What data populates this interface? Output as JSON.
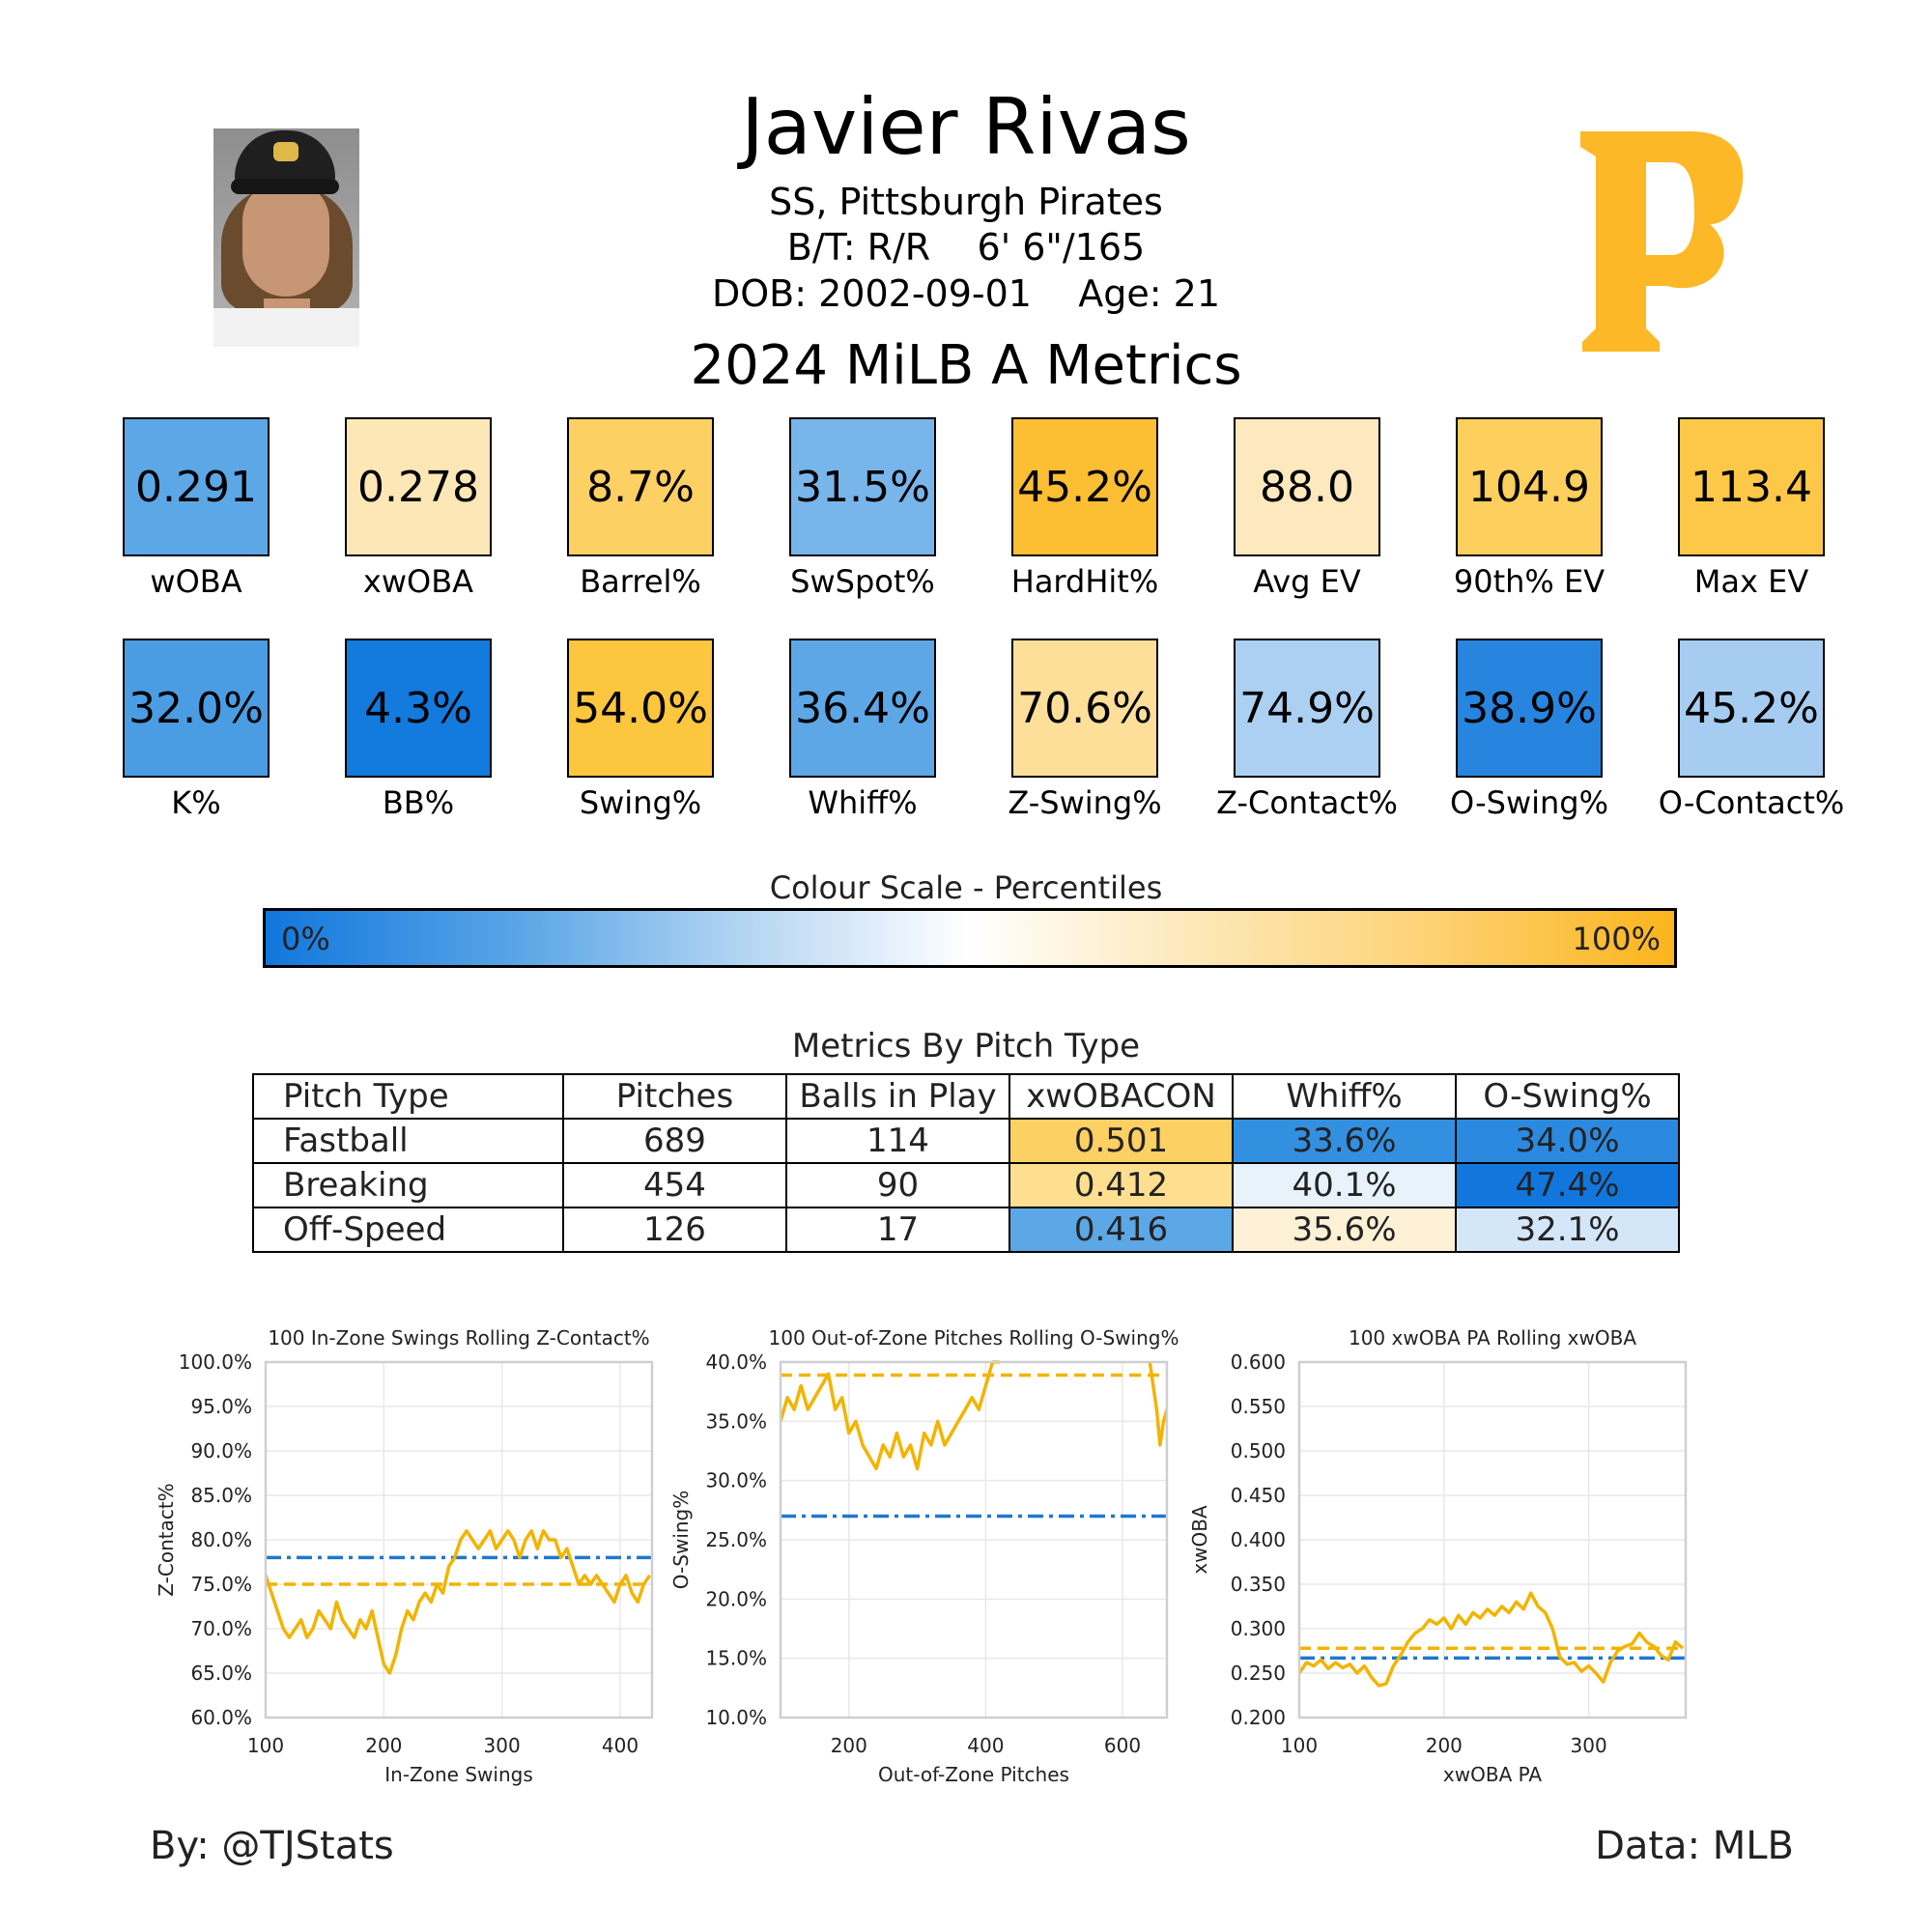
{
  "player": {
    "name": "Javier Rivas",
    "position_team": "SS, Pittsburgh Pirates",
    "bats_throws": "B/T: R/R",
    "height_weight": "6' 6\"/165",
    "dob": "DOB: 2002-09-01",
    "age": "Age: 21",
    "season_title": "2024 MiLB A Metrics"
  },
  "team_colors": {
    "primary": "#FDB827",
    "secondary": "#27251F"
  },
  "metrics_row1": [
    {
      "label": "wOBA",
      "value": "0.291",
      "color": "#5ca7e6"
    },
    {
      "label": "xwOBA",
      "value": "0.278",
      "color": "#fde7b6"
    },
    {
      "label": "Barrel%",
      "value": "8.7%",
      "color": "#fdd063"
    },
    {
      "label": "SwSpot%",
      "value": "31.5%",
      "color": "#78b5ea"
    },
    {
      "label": "HardHit%",
      "value": "45.2%",
      "color": "#fcbe33"
    },
    {
      "label": "Avg EV",
      "value": "88.0",
      "color": "#fde9bd"
    },
    {
      "label": "90th% EV",
      "value": "104.9",
      "color": "#fdcf5c"
    },
    {
      "label": "Max EV",
      "value": "113.4",
      "color": "#fdc847"
    }
  ],
  "metrics_row2": [
    {
      "label": "K%",
      "value": "32.0%",
      "color": "#4b9de3"
    },
    {
      "label": "BB%",
      "value": "4.3%",
      "color": "#127bdd"
    },
    {
      "label": "Swing%",
      "value": "54.0%",
      "color": "#fdc63f"
    },
    {
      "label": "Whiff%",
      "value": "36.4%",
      "color": "#5ea7e6"
    },
    {
      "label": "Z-Swing%",
      "value": "70.6%",
      "color": "#fddf9a"
    },
    {
      "label": "Z-Contact%",
      "value": "74.9%",
      "color": "#abd0f1"
    },
    {
      "label": "O-Swing%",
      "value": "38.9%",
      "color": "#2785df"
    },
    {
      "label": "O-Contact%",
      "value": "45.2%",
      "color": "#a6cdf1"
    }
  ],
  "color_scale": {
    "title": "Colour Scale - Percentiles",
    "min_label": "0%",
    "max_label": "100%"
  },
  "pitch_table": {
    "title": "Metrics By Pitch Type",
    "headers": [
      "Pitch Type",
      "Pitches",
      "Balls in Play",
      "xwOBACON",
      "Whiff%",
      "O-Swing%"
    ],
    "rows": [
      {
        "cells": [
          "Fastball",
          "689",
          "114",
          "0.501",
          "33.6%",
          "34.0%"
        ],
        "colors": [
          "#fdd063",
          "#3390e1",
          "#2b8ae0"
        ]
      },
      {
        "cells": [
          "Breaking",
          "454",
          "90",
          "0.412",
          "40.1%",
          "47.4%"
        ],
        "colors": [
          "#fddf8f",
          "#e8f2fb",
          "#1177dd"
        ]
      },
      {
        "cells": [
          "Off-Speed",
          "126",
          "17",
          "0.416",
          "35.6%",
          "32.1%"
        ],
        "colors": [
          "#5ca7e6",
          "#fff1d6",
          "#d4e7f8"
        ]
      }
    ]
  },
  "chart_data": [
    {
      "type": "line",
      "title": "100 In-Zone Swings Rolling Z-Contact%",
      "xlabel": "In-Zone Swings",
      "ylabel": "Z-Contact%",
      "xlim": [
        100,
        427
      ],
      "ylim": [
        0.6,
        1.0
      ],
      "xticks": [
        100,
        200,
        300,
        400
      ],
      "xtick_labels": [
        "100",
        "200",
        "300",
        "400"
      ],
      "yticks": [
        0.6,
        0.65,
        0.7,
        0.75,
        0.8,
        0.85,
        0.9,
        0.95,
        1.0
      ],
      "ytick_labels": [
        "60.0%",
        "65.0%",
        "70.0%",
        "75.0%",
        "80.0%",
        "85.0%",
        "90.0%",
        "95.0%",
        "100.0%"
      ],
      "grid": true,
      "hlines": [
        {
          "y": 0.78,
          "style": "dashdot",
          "color": "#1f77d0"
        },
        {
          "y": 0.75,
          "style": "dashed",
          "color": "#f2b400"
        }
      ],
      "series": [
        {
          "color": "#f2b400",
          "x": [
            100,
            105,
            110,
            115,
            120,
            125,
            130,
            135,
            140,
            145,
            150,
            155,
            160,
            165,
            170,
            175,
            180,
            185,
            190,
            195,
            200,
            205,
            210,
            215,
            220,
            225,
            230,
            235,
            240,
            245,
            250,
            255,
            260,
            265,
            270,
            275,
            280,
            285,
            290,
            295,
            300,
            305,
            310,
            315,
            320,
            325,
            330,
            335,
            340,
            345,
            350,
            355,
            360,
            365,
            370,
            375,
            380,
            385,
            390,
            395,
            400,
            405,
            410,
            415,
            420,
            425
          ],
          "y": [
            0.76,
            0.74,
            0.72,
            0.7,
            0.69,
            0.7,
            0.71,
            0.69,
            0.7,
            0.72,
            0.71,
            0.7,
            0.73,
            0.71,
            0.7,
            0.69,
            0.71,
            0.7,
            0.72,
            0.69,
            0.66,
            0.65,
            0.67,
            0.7,
            0.72,
            0.71,
            0.73,
            0.74,
            0.73,
            0.75,
            0.74,
            0.77,
            0.78,
            0.8,
            0.81,
            0.8,
            0.79,
            0.8,
            0.81,
            0.79,
            0.8,
            0.81,
            0.8,
            0.78,
            0.8,
            0.81,
            0.79,
            0.81,
            0.8,
            0.8,
            0.78,
            0.79,
            0.77,
            0.75,
            0.76,
            0.75,
            0.76,
            0.75,
            0.74,
            0.73,
            0.75,
            0.76,
            0.74,
            0.73,
            0.75,
            0.76
          ]
        }
      ]
    },
    {
      "type": "line",
      "title": "100 Out-of-Zone Pitches Rolling O-Swing%",
      "xlabel": "Out-of-Zone Pitches",
      "ylabel": "O-Swing%",
      "xlim": [
        100,
        665
      ],
      "ylim": [
        0.1,
        0.4
      ],
      "xticks": [
        200,
        400,
        600
      ],
      "xtick_labels": [
        "200",
        "400",
        "600"
      ],
      "yticks": [
        0.1,
        0.15,
        0.2,
        0.25,
        0.3,
        0.35,
        0.4
      ],
      "ytick_labels": [
        "10.0%",
        "15.0%",
        "20.0%",
        "25.0%",
        "30.0%",
        "35.0%",
        "40.0%"
      ],
      "grid": true,
      "hlines": [
        {
          "y": 0.27,
          "style": "dashdot",
          "color": "#1f77d0"
        },
        {
          "y": 0.389,
          "style": "dashed",
          "color": "#f2b400"
        }
      ],
      "series": [
        {
          "color": "#f2b400",
          "x": [
            100,
            110,
            120,
            130,
            140,
            150,
            160,
            170,
            180,
            190,
            200,
            210,
            220,
            230,
            240,
            250,
            260,
            270,
            280,
            290,
            300,
            310,
            320,
            330,
            340,
            350,
            360,
            370,
            380,
            390,
            400,
            410,
            420
          ],
          "y": [
            0.35,
            0.37,
            0.36,
            0.38,
            0.36,
            0.37,
            0.38,
            0.39,
            0.36,
            0.37,
            0.34,
            0.35,
            0.33,
            0.32,
            0.31,
            0.33,
            0.32,
            0.34,
            0.32,
            0.33,
            0.31,
            0.34,
            0.33,
            0.35,
            0.33,
            0.34,
            0.35,
            0.36,
            0.37,
            0.36,
            0.38,
            0.4,
            0.4
          ]
        },
        {
          "color": "#f2b400",
          "x": [
            640,
            645,
            650,
            655,
            660,
            665
          ],
          "y": [
            0.4,
            0.38,
            0.36,
            0.33,
            0.35,
            0.36
          ]
        }
      ]
    },
    {
      "type": "line",
      "title": "100 xwOBA PA Rolling xwOBA",
      "xlabel": "xwOBA PA",
      "ylabel": "xwOBA",
      "xlim": [
        100,
        367
      ],
      "ylim": [
        0.2,
        0.6
      ],
      "xticks": [
        100,
        200,
        300
      ],
      "xtick_labels": [
        "100",
        "200",
        "300"
      ],
      "yticks": [
        0.2,
        0.25,
        0.3,
        0.35,
        0.4,
        0.45,
        0.5,
        0.55,
        0.6
      ],
      "ytick_labels": [
        "0.200",
        "0.250",
        "0.300",
        "0.350",
        "0.400",
        "0.450",
        "0.500",
        "0.550",
        "0.600"
      ],
      "grid": true,
      "hlines": [
        {
          "y": 0.267,
          "style": "dashdot",
          "color": "#1f77d0"
        },
        {
          "y": 0.278,
          "style": "dashed",
          "color": "#f2b400"
        }
      ],
      "series": [
        {
          "color": "#f2b400",
          "x": [
            100,
            105,
            110,
            115,
            120,
            125,
            130,
            135,
            140,
            145,
            150,
            155,
            160,
            165,
            170,
            175,
            180,
            185,
            190,
            195,
            200,
            205,
            210,
            215,
            220,
            225,
            230,
            235,
            240,
            245,
            250,
            255,
            260,
            265,
            270,
            275,
            280,
            285,
            290,
            295,
            300,
            305,
            310,
            315,
            320,
            325,
            330,
            335,
            340,
            345,
            350,
            355,
            360,
            365
          ],
          "y": [
            0.25,
            0.262,
            0.258,
            0.265,
            0.255,
            0.262,
            0.256,
            0.26,
            0.25,
            0.258,
            0.245,
            0.236,
            0.238,
            0.258,
            0.27,
            0.285,
            0.295,
            0.3,
            0.31,
            0.305,
            0.312,
            0.3,
            0.315,
            0.305,
            0.318,
            0.312,
            0.322,
            0.315,
            0.325,
            0.318,
            0.33,
            0.322,
            0.34,
            0.325,
            0.318,
            0.3,
            0.268,
            0.26,
            0.262,
            0.252,
            0.258,
            0.25,
            0.24,
            0.262,
            0.275,
            0.28,
            0.283,
            0.295,
            0.285,
            0.28,
            0.27,
            0.265,
            0.285,
            0.278
          ]
        }
      ]
    }
  ],
  "footer": {
    "left": "By: @TJStats",
    "right": "Data: MLB"
  }
}
